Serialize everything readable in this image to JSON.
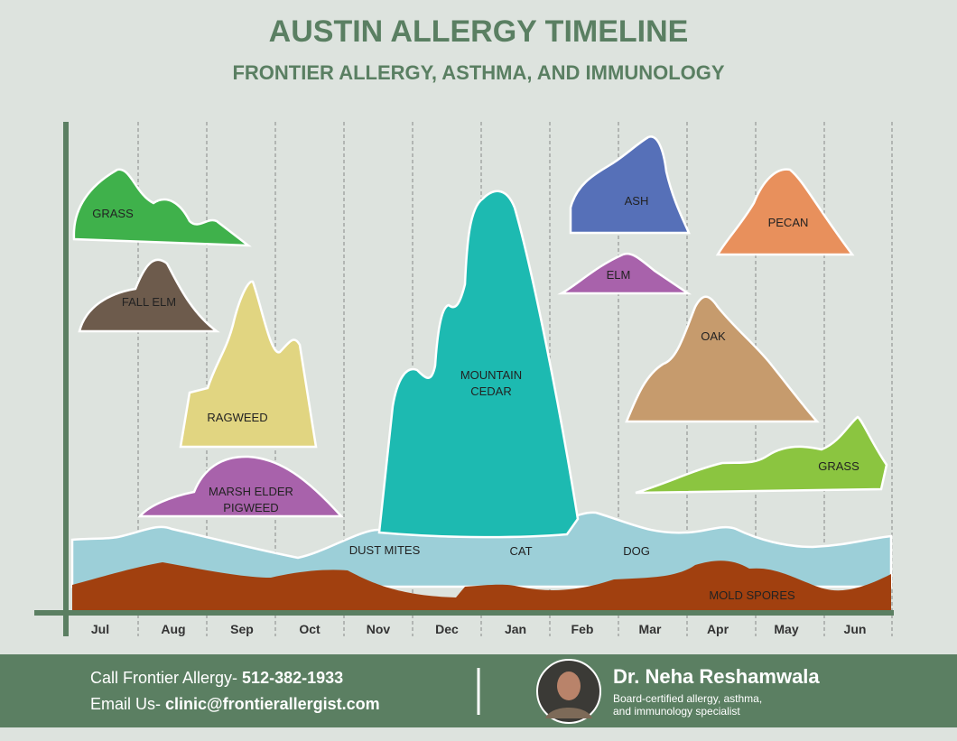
{
  "header": {
    "title": "AUSTIN ALLERGY TIMELINE",
    "subtitle": "FRONTIER ALLERGY, ASTHMA, AND IMMUNOLOGY"
  },
  "months": [
    "Jul",
    "Aug",
    "Sep",
    "Oct",
    "Nov",
    "Dec",
    "Jan",
    "Feb",
    "Mar",
    "Apr",
    "May",
    "Jun"
  ],
  "allergens": [
    {
      "lines": [
        "GRASS"
      ]
    },
    {
      "lines": [
        "FALL ELM"
      ]
    },
    {
      "lines": [
        "RAGWEED"
      ]
    },
    {
      "lines": [
        "MARSH ELDER",
        "PIGWEED"
      ]
    },
    {
      "lines": [
        "MOUNTAIN",
        "CEDAR"
      ]
    },
    {
      "lines": [
        "ASH"
      ]
    },
    {
      "lines": [
        "ELM"
      ]
    },
    {
      "lines": [
        "PECAN"
      ]
    },
    {
      "lines": [
        "OAK"
      ]
    },
    {
      "lines": [
        "GRASS"
      ]
    },
    {
      "lines": [
        "DUST MITES"
      ]
    },
    {
      "lines": [
        "CAT"
      ]
    },
    {
      "lines": [
        "DOG"
      ]
    },
    {
      "lines": [
        "MOLD SPORES"
      ]
    }
  ],
  "footer": {
    "phone_label": "Call Frontier Allergy- ",
    "phone": "512-382-1933",
    "email_label": "Email Us- ",
    "email": "clinic@frontierallergist.com",
    "doctor": "Dr. Neha Reshamwala",
    "credentials": [
      "Board-certified allergy, asthma,",
      "and immunology specialist"
    ]
  }
}
